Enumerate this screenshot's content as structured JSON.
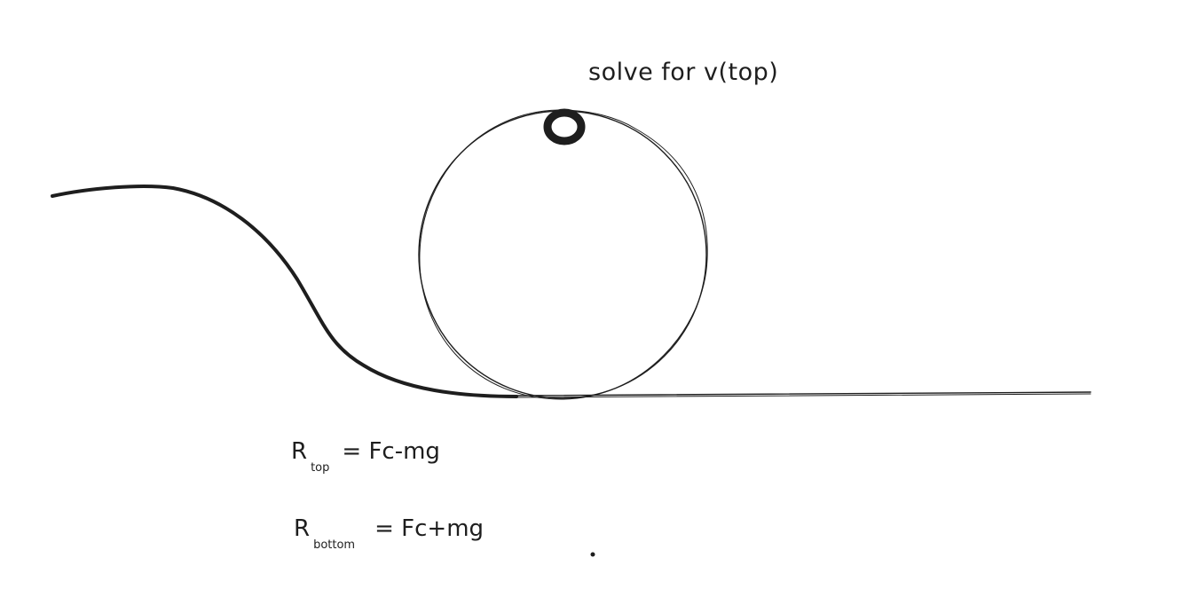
{
  "annotation": {
    "title": "solve for v(top)"
  },
  "equations": [
    {
      "symbol": "R",
      "subscript": "top",
      "rhs": "= Fc-mg"
    },
    {
      "symbol": "R",
      "subscript": "bottom",
      "rhs": "= Fc+mg"
    }
  ],
  "colors": {
    "stroke": "#1e1e1e",
    "background": "#ffffff"
  }
}
